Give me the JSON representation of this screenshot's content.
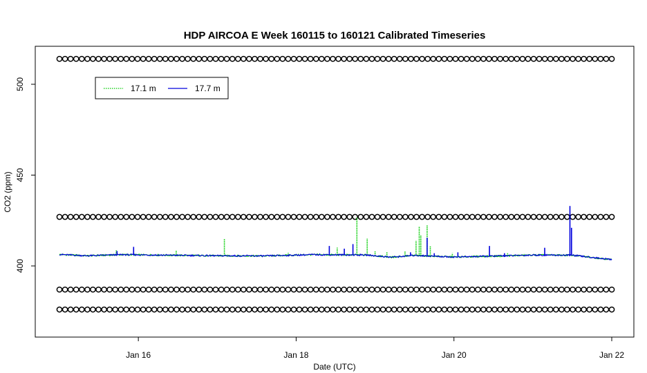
{
  "chart_data": {
    "type": "line",
    "title": "HDP AIRCOA E  Week 160115 to 160121  Calibrated Timeseries",
    "xlabel": "Date (UTC)",
    "ylabel": "CO2 (ppm)",
    "x_start": "Jan 15 00:00",
    "x_end": "Jan 22 00:00",
    "xlim": [
      "Jan 15 00:00",
      "Jan 22 00:00"
    ],
    "ylim": [
      377,
      517
    ],
    "x_ticks": [
      "Jan 16",
      "Jan 18",
      "Jan 20",
      "Jan 22"
    ],
    "y_ticks": [
      "400",
      "450",
      "500"
    ],
    "legend": {
      "placement": "top-left",
      "entries": [
        {
          "label": "17.1 m",
          "color": "#00cc00",
          "style": "dotted"
        },
        {
          "label": "17.7 m",
          "color": "#0000dd",
          "style": "solid"
        }
      ]
    },
    "series": [
      {
        "name": "17.1 m",
        "color": "#00cc00",
        "baseline": [
          [
            0.0,
            406.3
          ],
          [
            0.35,
            405.6
          ],
          [
            0.8,
            406.2
          ],
          [
            1.2,
            406.0
          ],
          [
            2.0,
            405.6
          ],
          [
            2.6,
            405.5
          ],
          [
            3.2,
            406.2
          ],
          [
            3.9,
            406.0
          ],
          [
            4.2,
            404.8
          ],
          [
            4.5,
            405.8
          ],
          [
            5.0,
            404.9
          ],
          [
            5.6,
            405.5
          ],
          [
            6.0,
            406.0
          ],
          [
            6.5,
            405.9
          ],
          [
            7.0,
            403.5
          ]
        ],
        "spikes": [
          [
            0.72,
            408.5
          ],
          [
            1.48,
            408.5
          ],
          [
            2.09,
            414.8
          ],
          [
            2.9,
            407.2
          ],
          [
            3.52,
            410.2
          ],
          [
            3.77,
            426.5
          ],
          [
            3.9,
            415.0
          ],
          [
            4.0,
            408.0
          ],
          [
            4.15,
            407.5
          ],
          [
            4.38,
            408.2
          ],
          [
            4.52,
            413.8
          ],
          [
            4.56,
            421.5
          ],
          [
            4.58,
            417.0
          ],
          [
            4.66,
            422.5
          ],
          [
            4.7,
            411.0
          ],
          [
            4.98,
            407.0
          ],
          [
            5.68,
            407.0
          ]
        ]
      },
      {
        "name": "17.7 m",
        "color": "#0000dd",
        "baseline": [
          [
            0.0,
            406.3
          ],
          [
            0.35,
            405.6
          ],
          [
            0.8,
            406.2
          ],
          [
            1.2,
            406.0
          ],
          [
            2.0,
            405.6
          ],
          [
            2.6,
            405.5
          ],
          [
            3.2,
            406.2
          ],
          [
            3.9,
            406.0
          ],
          [
            4.2,
            404.8
          ],
          [
            4.5,
            405.8
          ],
          [
            5.0,
            404.9
          ],
          [
            5.6,
            405.5
          ],
          [
            6.0,
            406.0
          ],
          [
            6.5,
            405.9
          ],
          [
            7.0,
            403.5
          ]
        ],
        "spikes": [
          [
            0.73,
            408.2
          ],
          [
            0.94,
            410.5
          ],
          [
            3.42,
            411.0
          ],
          [
            3.61,
            409.5
          ],
          [
            3.72,
            412.0
          ],
          [
            4.45,
            407.5
          ],
          [
            4.66,
            415.5
          ],
          [
            4.75,
            407.0
          ],
          [
            5.05,
            407.5
          ],
          [
            5.45,
            411.0
          ],
          [
            5.64,
            407.0
          ],
          [
            6.15,
            410.0
          ],
          [
            6.47,
            433.0
          ],
          [
            6.49,
            421.0
          ]
        ]
      },
      {
        "name": "",
        "type": "points",
        "y": 514,
        "count": 100
      },
      {
        "name": "",
        "type": "points",
        "y": 427,
        "count": 100
      },
      {
        "name": "",
        "type": "points",
        "y": 387,
        "count": 100
      },
      {
        "name": "",
        "type": "points",
        "y": 376,
        "count": 100
      }
    ]
  }
}
